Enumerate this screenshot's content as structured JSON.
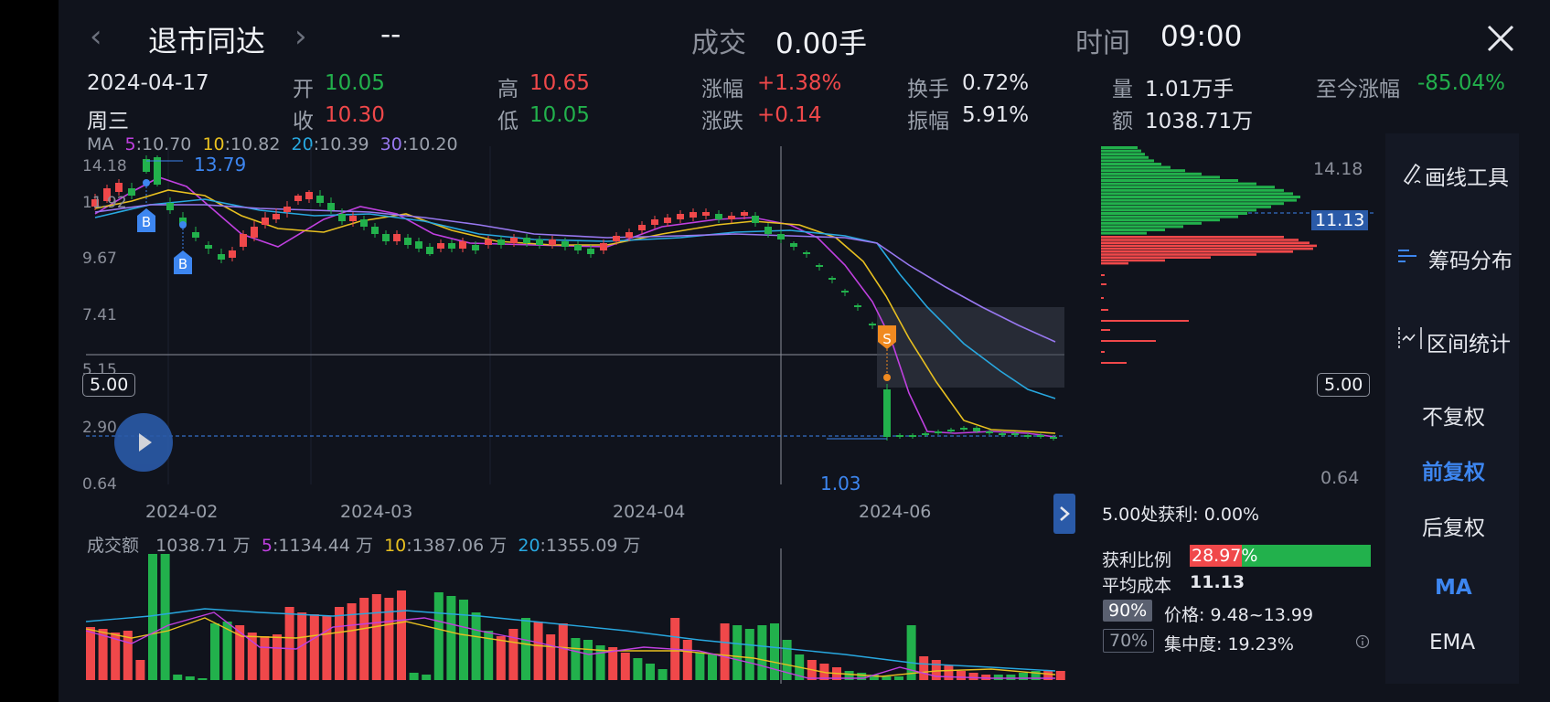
{
  "header": {
    "stock_name": "退市同达",
    "price": "--",
    "volume_label": "成交",
    "volume_value": "0.00手",
    "time_label": "时间",
    "time_value": "09:00"
  },
  "info": {
    "date": "2024-04-17",
    "weekday": "周三",
    "open_label": "开",
    "open": "10.05",
    "close_label": "收",
    "close": "10.30",
    "high_label": "高",
    "high": "10.65",
    "low_label": "低",
    "low": "10.05",
    "chg_pct_label": "涨幅",
    "chg_pct": "+1.38%",
    "chg_label": "涨跌",
    "chg": "+0.14",
    "turnover_label": "换手",
    "turnover": "0.72%",
    "amplitude_label": "振幅",
    "amplitude": "5.91%",
    "vol_label": "量",
    "vol": "1.01万手",
    "amount_label": "额",
    "amount": "1038.71万",
    "since_label": "至今涨幅",
    "since": "-85.04%"
  },
  "ma_legend": {
    "label": "MA",
    "ma5_key": "5",
    "ma5": ":10.70",
    "ma10_key": "10",
    "ma10": ":10.82",
    "ma20_key": "20",
    "ma20": ":10.39",
    "ma30_key": "30",
    "ma30": ":10.20"
  },
  "price_axis": [
    "14.18",
    "11.92",
    "9.67",
    "7.41",
    "5.15",
    "2.90",
    "0.64"
  ],
  "annotations": {
    "max_label": "13.79",
    "min_label": "1.03",
    "buy_marker": "B",
    "sell_marker": "S",
    "crosshair_price": "5.00"
  },
  "x_dates": [
    "2024-02",
    "2024-03",
    "2024-04",
    "2024-06"
  ],
  "volume_legend": {
    "label": "成交额",
    "value": "1038.71 万",
    "ma5_key": "5",
    "ma5": ":1134.44 万",
    "ma10_key": "10",
    "ma10": ":1387.06 万",
    "ma20_key": "20",
    "ma20": ":1355.09 万"
  },
  "chip": {
    "top_price": "14.18",
    "avg_tag": "11.13",
    "bottom_price": "0.64",
    "profit_at": "5.00处获利: 0.00%",
    "profit_ratio_label": "获利比例",
    "profit_ratio": "28.97%",
    "profit_ratio_value": 0.2897,
    "avg_cost_label": "平均成本",
    "avg_cost": "11.13",
    "p90": "90%",
    "p90_range": "价格: 9.48~13.99",
    "p70": "70%",
    "p70_conc": "集中度: 19.23%",
    "info_icon": "info-icon"
  },
  "sidebar": {
    "draw_tool": "画线工具",
    "chip_dist": "筹码分布",
    "range_stat": "区间统计",
    "no_adjust": "不复权",
    "pre_adjust": "前复权",
    "post_adjust": "后复权",
    "ma": "MA",
    "ema": "EMA"
  },
  "icons": {
    "back": "chevron-left-icon",
    "forward": "chevron-right-icon",
    "close": "close-icon",
    "play": "play-icon",
    "expand": "chevron-right-icon"
  },
  "colors": {
    "up": "#f0484a",
    "down": "#22b14c",
    "accent": "#3d86f0",
    "ma5": "#c040e0",
    "ma10": "#e8c020",
    "ma20": "#28a8e0",
    "ma30": "#9878f0"
  }
}
